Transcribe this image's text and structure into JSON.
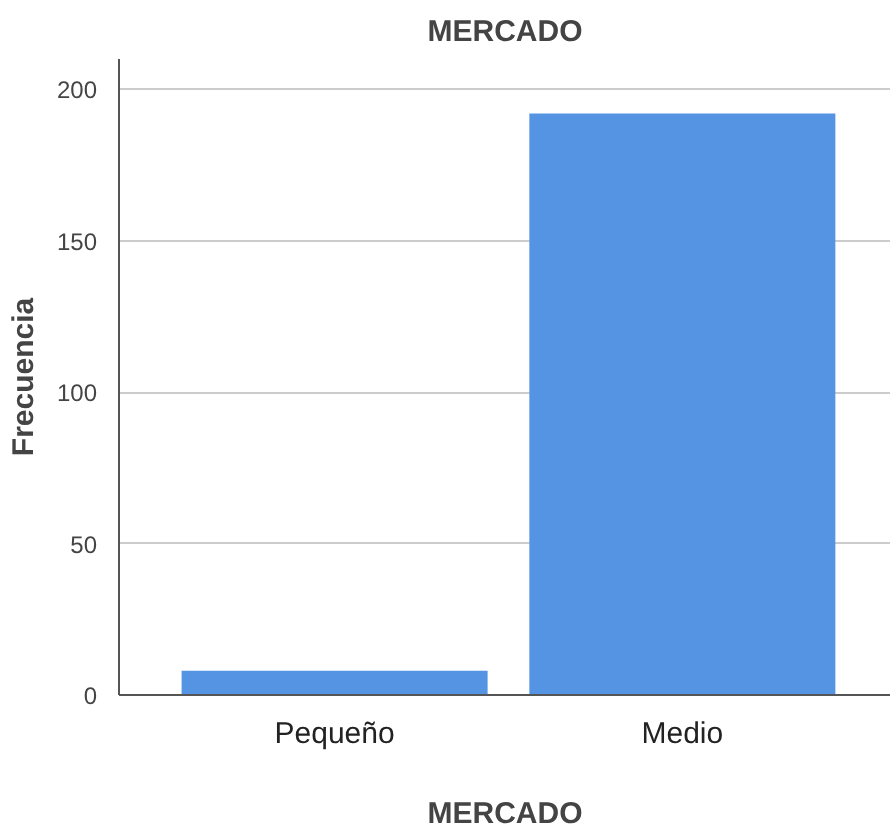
{
  "chart_data": {
    "type": "bar",
    "title": "MERCADO",
    "xlabel": "MERCADO",
    "ylabel": "Frecuencia",
    "categories": [
      "Pequeño",
      "Medio"
    ],
    "values": [
      8,
      192
    ],
    "color": "#5594e2",
    "ylim": [
      0,
      210
    ],
    "yticks": [
      0,
      50,
      100,
      150,
      200
    ],
    "grid": "y"
  }
}
